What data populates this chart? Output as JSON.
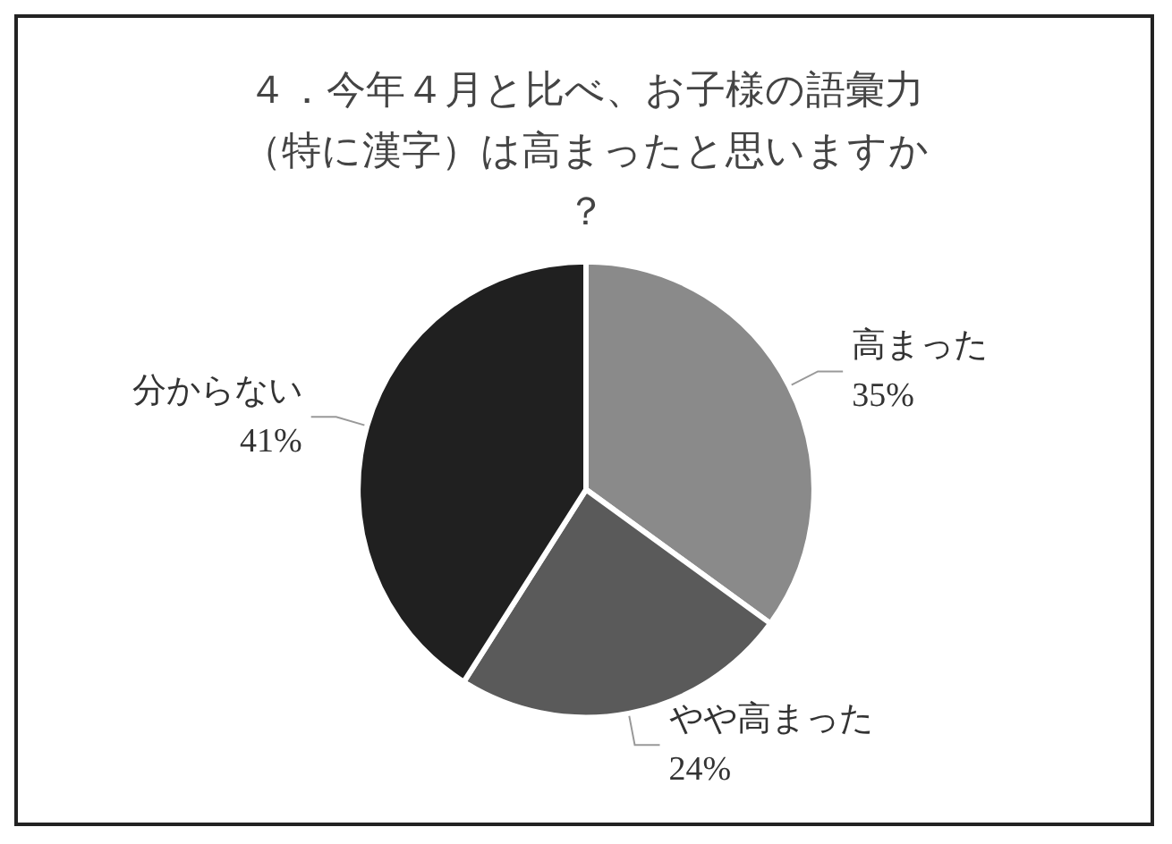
{
  "chart_data": {
    "type": "pie",
    "title": "４．今年４月と比べ、お子様の語彙力（特に漢字）は高まったと思いますか？",
    "categories": [
      "高まった",
      "やや高まった",
      "分からない"
    ],
    "values": [
      35,
      24,
      41
    ],
    "colors": [
      "#8a8a8a",
      "#5a5a5a",
      "#202020"
    ],
    "value_labels": [
      "35%",
      "24%",
      "41%"
    ],
    "legend": false
  }
}
